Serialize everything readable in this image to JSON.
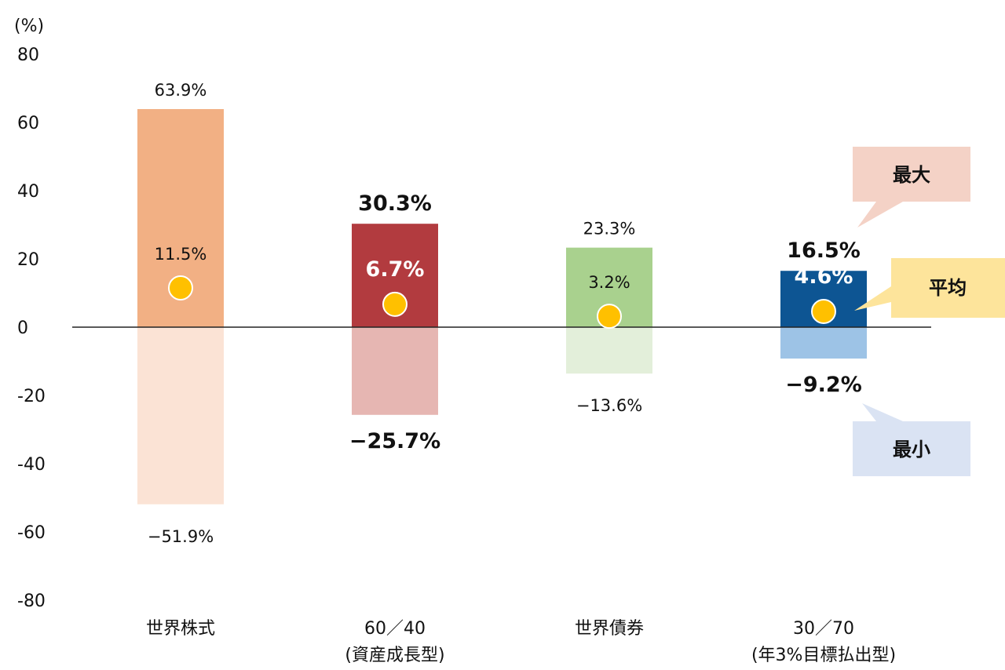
{
  "chart_data": {
    "type": "bar",
    "ylabel": "(%)",
    "ylim": [
      -80,
      80
    ],
    "yticks": [
      "80",
      "60",
      "40",
      "20",
      "0",
      "-20",
      "-40",
      "-60",
      "-80"
    ],
    "categories": [
      {
        "line1": "世界株式",
        "line2": ""
      },
      {
        "line1": "60／40",
        "line2": "(資産成長型)"
      },
      {
        "line1": "世界債券",
        "line2": ""
      },
      {
        "line1": "30／70",
        "line2": "(年3%目標払出型)"
      }
    ],
    "series": [
      {
        "name": "最大",
        "values": [
          63.9,
          30.3,
          23.3,
          16.5
        ],
        "labels": [
          "63.9%",
          "30.3%",
          "23.3%",
          "16.5%"
        ]
      },
      {
        "name": "平均",
        "values": [
          11.5,
          6.7,
          3.2,
          4.6
        ],
        "labels": [
          "11.5%",
          "6.7%",
          "3.2%",
          "4.6%"
        ]
      },
      {
        "name": "最小",
        "values": [
          -51.9,
          -25.7,
          -13.6,
          -9.2
        ],
        "labels": [
          "−51.9%",
          "−25.7%",
          "−13.6%",
          "−9.2%"
        ]
      }
    ],
    "bold_labels": [
      false,
      true,
      false,
      true
    ],
    "colors": {
      "positive": [
        "#f2b084",
        "#b23b3f",
        "#a9d18e",
        "#0d5593"
      ],
      "negative": [
        "#fbe3d5",
        "#e6b6b2",
        "#e3efda",
        "#9dc3e6"
      ],
      "average_marker": "#ffc000",
      "zero_line": "#222222"
    },
    "callouts": {
      "max": {
        "label": "最大",
        "color": "#f4d2c6"
      },
      "avg": {
        "label": "平均",
        "color": "#fde49b"
      },
      "min": {
        "label": "最小",
        "color": "#dae3f3"
      }
    }
  }
}
